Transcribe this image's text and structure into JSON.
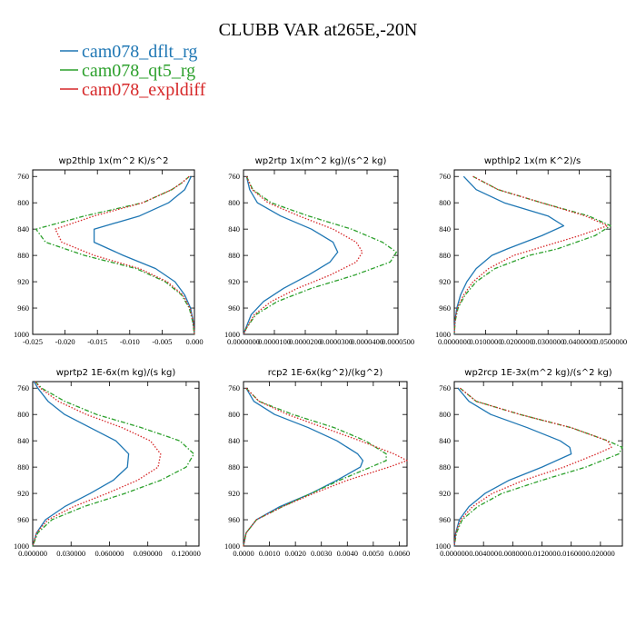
{
  "chart_data": {
    "title": "CLUBB VAR at265E,-20N",
    "legend": [
      {
        "name": "cam078_dflt_rg",
        "color": "#1f77b4",
        "dash": "solid"
      },
      {
        "name": "cam078_qt5_rg",
        "color": "#2ca02c",
        "dash": "dashdot"
      },
      {
        "name": "cam078_expldiff",
        "color": "#d62728",
        "dash": "dotted"
      }
    ],
    "panels": [
      {
        "id": "wp2thlp",
        "title": "wp2thlp   1x(m^2 K)/s^2",
        "type": "line",
        "xlim": [
          -0.025,
          0.0
        ],
        "ylim": [
          1000,
          750
        ],
        "xticks": [
          -0.025,
          -0.02,
          -0.015,
          -0.01,
          -0.005,
          0.0
        ],
        "xtick_labels": [
          "-0.025",
          "-0.020",
          "-0.015",
          "-0.010",
          "-0.005",
          "0.000"
        ],
        "yticks": [
          760,
          800,
          840,
          880,
          920,
          960,
          1000
        ],
        "ytick_labels": [
          "760",
          "800",
          "840",
          "880",
          "920",
          "960",
          "1000"
        ],
        "y": [
          760,
          770,
          780,
          800,
          820,
          840,
          860,
          880,
          900,
          920,
          940,
          960,
          980,
          1000
        ],
        "series": [
          {
            "name": "cam078_dflt_rg",
            "values": [
              -0.0005,
              -0.001,
              -0.0015,
              -0.004,
              -0.0085,
              -0.0155,
              -0.0155,
              -0.011,
              -0.006,
              -0.003,
              -0.0015,
              -0.0006,
              -0.0002,
              0.0
            ]
          },
          {
            "name": "cam078_qt5_rg",
            "values": [
              -0.0008,
              -0.002,
              -0.0035,
              -0.008,
              -0.017,
              -0.0245,
              -0.023,
              -0.017,
              -0.009,
              -0.0045,
              -0.002,
              -0.0008,
              -0.0003,
              0.0
            ]
          },
          {
            "name": "cam078_expldiff",
            "values": [
              -0.0008,
              -0.002,
              -0.0035,
              -0.008,
              -0.0155,
              -0.0215,
              -0.0205,
              -0.0155,
              -0.0085,
              -0.0042,
              -0.0018,
              -0.0007,
              -0.0002,
              0.0
            ]
          }
        ]
      },
      {
        "id": "wp2rtp",
        "title": "wp2rtp   1x(m^2 kg)/(s^2 kg)",
        "type": "line",
        "xlim": [
          0.0,
          5e-05
        ],
        "ylim": [
          1000,
          750
        ],
        "xticks": [
          0.0,
          1e-05,
          2e-05,
          3e-05,
          4e-05,
          5e-05
        ],
        "xtick_labels": [
          "0.0000000",
          "0.0000100",
          "0.0000200",
          "0.0000300",
          "0.0000400",
          "0.0000500"
        ],
        "yticks": [
          760,
          800,
          840,
          880,
          920,
          960,
          1000
        ],
        "ytick_labels": [
          "760",
          "800",
          "840",
          "880",
          "920",
          "960",
          "1000"
        ],
        "y": [
          760,
          780,
          800,
          820,
          840,
          860,
          875,
          890,
          910,
          930,
          950,
          970,
          990,
          1000
        ],
        "series": [
          {
            "name": "cam078_dflt_rg",
            "values": [
              1e-06,
              2e-06,
              4.5e-06,
              1.2e-05,
              2.2e-05,
              2.9e-05,
              3.05e-05,
              2.8e-05,
              2.1e-05,
              1.3e-05,
              6.5e-06,
              2.5e-06,
              8e-07,
              0.0
            ]
          },
          {
            "name": "cam078_qt5_rg",
            "values": [
              1e-06,
              3e-06,
              9e-06,
              2.1e-05,
              3.5e-05,
              4.5e-05,
              4.95e-05,
              4.75e-05,
              3.6e-05,
              2.2e-05,
              1.1e-05,
              4e-06,
              1e-06,
              0.0
            ]
          },
          {
            "name": "cam078_expldiff",
            "values": [
              1e-06,
              2.8e-06,
              8e-06,
              1.8e-05,
              2.9e-05,
              3.65e-05,
              3.85e-05,
              3.65e-05,
              2.8e-05,
              1.75e-05,
              9e-06,
              3.5e-06,
              1e-06,
              0.0
            ]
          }
        ]
      },
      {
        "id": "wpthlp2",
        "title": "wpthlp2   1x(m K^2)/s",
        "type": "line",
        "xlim": [
          0.0,
          0.05
        ],
        "ylim": [
          1000,
          750
        ],
        "xticks": [
          0.0,
          0.01,
          0.02,
          0.03,
          0.04,
          0.05
        ],
        "xtick_labels": [
          "0.0000000",
          "0.0100000",
          "0.0200000",
          "0.0300000",
          "0.0400000",
          "0.0500000"
        ],
        "yticks": [
          760,
          800,
          840,
          880,
          920,
          960,
          1000
        ],
        "ytick_labels": [
          "760",
          "800",
          "840",
          "880",
          "920",
          "960",
          "1000"
        ],
        "y": [
          760,
          780,
          800,
          820,
          835,
          850,
          870,
          880,
          900,
          920,
          940,
          960,
          980,
          1000
        ],
        "series": [
          {
            "name": "cam078_dflt_rg",
            "values": [
              0.003,
              0.007,
              0.016,
              0.03,
              0.035,
              0.028,
              0.017,
              0.012,
              0.007,
              0.004,
              0.002,
              0.0008,
              0.0002,
              0.0
            ]
          },
          {
            "name": "cam078_qt5_rg",
            "values": [
              0.006,
              0.014,
              0.028,
              0.043,
              0.05,
              0.045,
              0.033,
              0.024,
              0.013,
              0.007,
              0.0035,
              0.0012,
              0.0003,
              0.0
            ]
          },
          {
            "name": "cam078_expldiff",
            "values": [
              0.006,
              0.014,
              0.028,
              0.042,
              0.049,
              0.04,
              0.026,
              0.019,
              0.011,
              0.006,
              0.003,
              0.001,
              0.0002,
              0.0
            ]
          }
        ]
      },
      {
        "id": "wprtp2",
        "title": "wprtp2   1E-6x(m kg)/(s kg)",
        "type": "line",
        "xlim": [
          0.0,
          0.13
        ],
        "ylim": [
          1000,
          750
        ],
        "xticks": [
          0.0,
          0.03,
          0.06,
          0.09,
          0.12
        ],
        "xtick_labels": [
          "0.000000",
          "0.030000",
          "0.060000",
          "0.090000",
          "0.120000"
        ],
        "yticks": [
          760,
          800,
          840,
          880,
          920,
          960,
          1000
        ],
        "ytick_labels": [
          "760",
          "800",
          "840",
          "880",
          "920",
          "960",
          "1000"
        ],
        "y": [
          750,
          760,
          780,
          800,
          820,
          840,
          860,
          880,
          900,
          920,
          940,
          960,
          980,
          1000
        ],
        "series": [
          {
            "name": "cam078_dflt_rg",
            "values": [
              0.001,
              0.004,
              0.012,
              0.025,
              0.045,
              0.065,
              0.075,
              0.074,
              0.063,
              0.045,
              0.025,
              0.01,
              0.003,
              0.0
            ]
          },
          {
            "name": "cam078_qt5_rg",
            "values": [
              0.002,
              0.007,
              0.025,
              0.05,
              0.085,
              0.115,
              0.126,
              0.12,
              0.1,
              0.072,
              0.04,
              0.015,
              0.004,
              0.0
            ]
          },
          {
            "name": "cam078_expldiff",
            "values": [
              0.002,
              0.006,
              0.02,
              0.042,
              0.07,
              0.092,
              0.1,
              0.098,
              0.082,
              0.058,
              0.032,
              0.012,
              0.003,
              0.0
            ]
          }
        ]
      },
      {
        "id": "rcp2",
        "title": "rcp2   1E-6x(kg^2)/(kg^2)",
        "type": "line",
        "xlim": [
          0.0,
          0.0063
        ],
        "ylim": [
          1000,
          750
        ],
        "xticks": [
          0.0,
          0.001,
          0.002,
          0.003,
          0.004,
          0.005,
          0.006
        ],
        "xtick_labels": [
          "0.0000",
          "0.0010",
          "0.0020",
          "0.0030",
          "0.0040",
          "0.0050",
          "0.0060"
        ],
        "yticks": [
          760,
          800,
          840,
          880,
          920,
          960,
          1000
        ],
        "ytick_labels": [
          "760",
          "800",
          "840",
          "880",
          "920",
          "960",
          "1000"
        ],
        "y": [
          760,
          780,
          800,
          820,
          840,
          860,
          870,
          880,
          900,
          920,
          940,
          960,
          980,
          1000
        ],
        "series": [
          {
            "name": "cam078_dflt_rg",
            "values": [
              0.0001,
              0.0004,
              0.0012,
              0.0025,
              0.0036,
              0.0044,
              0.0046,
              0.0045,
              0.0036,
              0.0026,
              0.0014,
              0.0005,
              0.0001,
              0.0
            ]
          },
          {
            "name": "cam078_qt5_rg",
            "values": [
              0.0001,
              0.0006,
              0.0019,
              0.0035,
              0.0047,
              0.0055,
              0.0055,
              0.0049,
              0.0037,
              0.0026,
              0.0015,
              0.0005,
              0.0001,
              0.0
            ]
          },
          {
            "name": "cam078_expldiff",
            "values": [
              0.0001,
              0.0006,
              0.0017,
              0.0031,
              0.0045,
              0.0058,
              0.0063,
              0.0056,
              0.004,
              0.0027,
              0.0015,
              0.0005,
              0.0001,
              0.0
            ]
          }
        ]
      },
      {
        "id": "wp2rcp",
        "title": "wp2rcp   1E-3x(m^2 kg)/(s^2 kg)",
        "type": "line",
        "xlim": [
          0.0,
          0.023
        ],
        "ylim": [
          1000,
          750
        ],
        "xticks": [
          0.0,
          0.004,
          0.008,
          0.012,
          0.016,
          0.02
        ],
        "xtick_labels": [
          "0.000000",
          "0.004000",
          "0.008000",
          "0.012000",
          "0.016000",
          "0.020000"
        ],
        "yticks": [
          760,
          800,
          840,
          880,
          920,
          960,
          1000
        ],
        "ytick_labels": [
          "760",
          "800",
          "840",
          "880",
          "920",
          "960",
          "1000"
        ],
        "y": [
          760,
          780,
          800,
          820,
          840,
          850,
          860,
          880,
          900,
          920,
          940,
          960,
          980,
          1000
        ],
        "series": [
          {
            "name": "cam078_dflt_rg",
            "values": [
              0.0005,
              0.002,
              0.005,
              0.01,
              0.0145,
              0.0158,
              0.016,
              0.012,
              0.0075,
              0.0042,
              0.002,
              0.0007,
              0.0002,
              0.0
            ]
          },
          {
            "name": "cam078_qt5_rg",
            "values": [
              0.0008,
              0.003,
              0.009,
              0.016,
              0.021,
              0.023,
              0.0225,
              0.018,
              0.012,
              0.0065,
              0.0032,
              0.0011,
              0.0003,
              0.0
            ]
          },
          {
            "name": "cam078_expldiff",
            "values": [
              0.0008,
              0.003,
              0.009,
              0.016,
              0.021,
              0.0215,
              0.0195,
              0.015,
              0.0095,
              0.0052,
              0.0025,
              0.0009,
              0.0002,
              0.0
            ]
          }
        ]
      }
    ]
  }
}
